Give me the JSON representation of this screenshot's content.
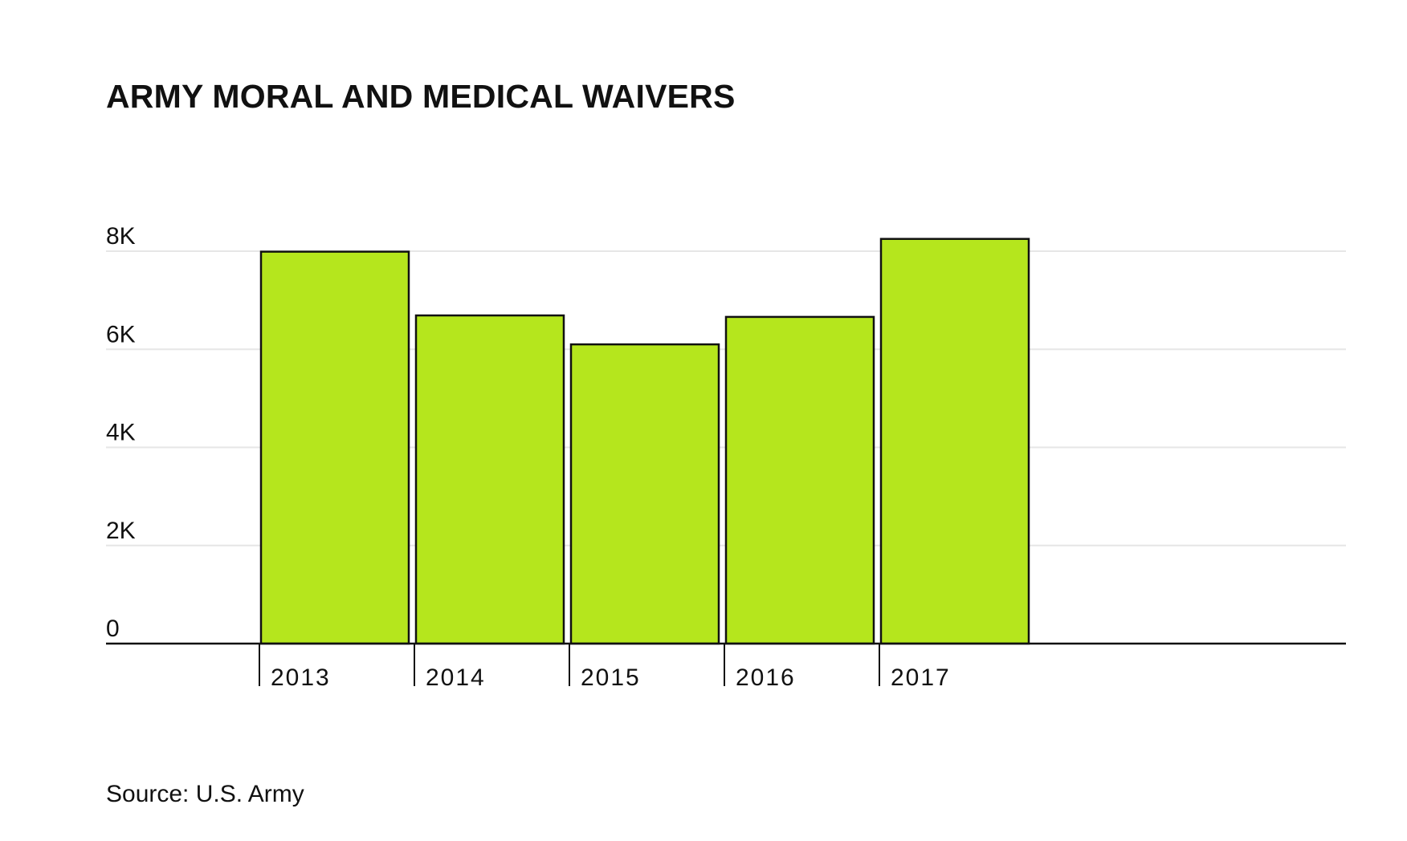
{
  "chart_data": {
    "type": "bar",
    "title": "ARMY MORAL AND MEDICAL WAIVERS",
    "xlabel": "",
    "ylabel": "",
    "categories": [
      "2013",
      "2014",
      "2015",
      "2016",
      "2017"
    ],
    "values": [
      7990,
      6690,
      6100,
      6660,
      8250
    ],
    "ylim": [
      0,
      8000
    ],
    "yticks": [
      {
        "value": 0,
        "label": "0"
      },
      {
        "value": 2000,
        "label": "2K"
      },
      {
        "value": 4000,
        "label": "4K"
      },
      {
        "value": 6000,
        "label": "6K"
      },
      {
        "value": 8000,
        "label": "8K"
      }
    ],
    "grid": true,
    "bar_color": "#b5e61d",
    "bar_outline_color": "#111111",
    "grid_color": "#e6e6e6",
    "source": "Source: U.S. Army"
  }
}
